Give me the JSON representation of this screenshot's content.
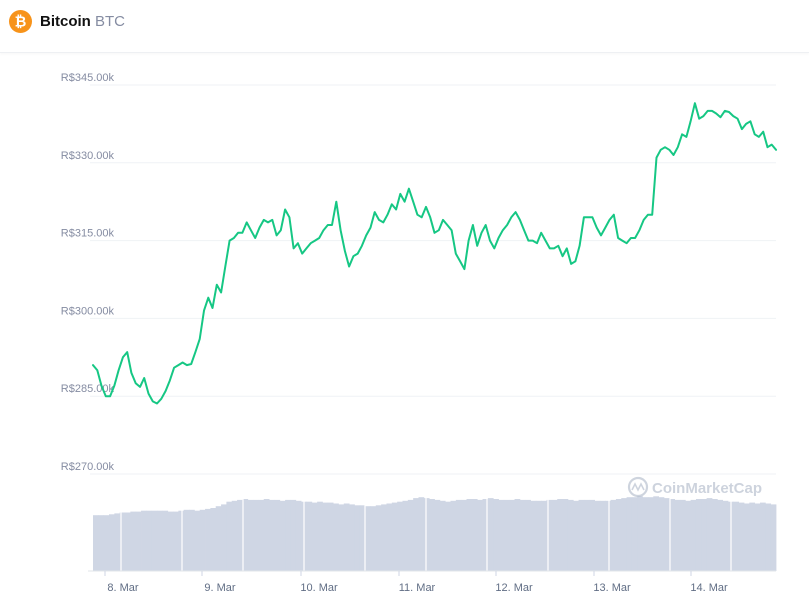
{
  "header": {
    "coin_name": "Bitcoin",
    "coin_symbol": "BTC",
    "logo_color": "#f7931a",
    "logo_icon": "bitcoin-icon"
  },
  "watermark": "CoinMarketCap",
  "colors": {
    "line": "#16c784",
    "volume": "#cfd6e4",
    "grid": "#eff2f5",
    "axis": "#858ca2"
  },
  "chart_data": {
    "type": "line",
    "series": [
      {
        "values": [
          291,
          290,
          287,
          285,
          285,
          287,
          290,
          292.5,
          293.5,
          289.5,
          287.5,
          286.8,
          288.5,
          285.5,
          284,
          283.6,
          284.5,
          286,
          288,
          290.5,
          291,
          291.5,
          291,
          291.2,
          293.5,
          296,
          301.5,
          304,
          302,
          306.5,
          305,
          310,
          315,
          315.5,
          316.5,
          316.5,
          318.5,
          317,
          315.5,
          317.5,
          319,
          318.5,
          319,
          316,
          317,
          321,
          319.5,
          313.5,
          314.5,
          312.5,
          313.5,
          314.5,
          315,
          315.5,
          317,
          318,
          318,
          322.5,
          317,
          313,
          310,
          312,
          312.5,
          314,
          316,
          317.5,
          320.5,
          319,
          318.5,
          320,
          322,
          321,
          324,
          322.5,
          325,
          322.5,
          320,
          319.5,
          321.5,
          319.5,
          316.5,
          317,
          319,
          318,
          317,
          312.5,
          311,
          309.5,
          315,
          318,
          314,
          316.5,
          318,
          315,
          313.5,
          315.5,
          317,
          318,
          319.5,
          320.5,
          319,
          317,
          315,
          315,
          314.5,
          316.5,
          315,
          313.5,
          313.5,
          314,
          312,
          313.5,
          310.5,
          311,
          314,
          319.5,
          319.5,
          319.5,
          317.5,
          316,
          317.5,
          319,
          320,
          315.5,
          315,
          314.5,
          315.5,
          315.5,
          317,
          319,
          320,
          320,
          331,
          332.5,
          333,
          332.5,
          331.5,
          333,
          335.5,
          335,
          338,
          341.5,
          338.5,
          339,
          340,
          340,
          339.5,
          338.8,
          340,
          339.8,
          339,
          338.5,
          336.5,
          337.5,
          338,
          335.5,
          335,
          336,
          333,
          333.5,
          332.5
        ]
      }
    ],
    "volume": [
      0.62,
      0.62,
      0.62,
      0.63,
      0.64,
      0.65,
      0.65,
      0.66,
      0.66,
      0.67,
      0.67,
      0.67,
      0.67,
      0.67,
      0.66,
      0.66,
      0.67,
      0.68,
      0.68,
      0.67,
      0.68,
      0.69,
      0.7,
      0.72,
      0.74,
      0.77,
      0.78,
      0.79,
      0.8,
      0.79,
      0.79,
      0.79,
      0.8,
      0.79,
      0.79,
      0.78,
      0.79,
      0.79,
      0.78,
      0.77,
      0.77,
      0.76,
      0.77,
      0.76,
      0.76,
      0.75,
      0.74,
      0.75,
      0.74,
      0.73,
      0.73,
      0.72,
      0.72,
      0.73,
      0.74,
      0.75,
      0.76,
      0.77,
      0.78,
      0.79,
      0.81,
      0.82,
      0.81,
      0.8,
      0.79,
      0.78,
      0.77,
      0.78,
      0.79,
      0.79,
      0.8,
      0.8,
      0.79,
      0.8,
      0.81,
      0.8,
      0.79,
      0.79,
      0.79,
      0.8,
      0.79,
      0.79,
      0.78,
      0.78,
      0.78,
      0.79,
      0.79,
      0.8,
      0.8,
      0.79,
      0.78,
      0.79,
      0.79,
      0.79,
      0.78,
      0.78,
      0.78,
      0.79,
      0.8,
      0.81,
      0.82,
      0.82,
      0.83,
      0.82,
      0.82,
      0.83,
      0.82,
      0.81,
      0.8,
      0.79,
      0.79,
      0.78,
      0.79,
      0.8,
      0.8,
      0.81,
      0.8,
      0.79,
      0.78,
      0.77,
      0.77,
      0.76,
      0.75,
      0.76,
      0.75,
      0.76,
      0.75,
      0.74
    ],
    "x_ticks": [
      "8. Mar",
      "9. Mar",
      "10. Mar",
      "11. Mar",
      "12. Mar",
      "13. Mar",
      "14. Mar"
    ],
    "y_ticks": [
      "R$270.00k",
      "R$285.00k",
      "R$300.00k",
      "R$315.00k",
      "R$330.00k",
      "R$345.00k"
    ],
    "y_tick_values": [
      270,
      285,
      300,
      315,
      330,
      345
    ],
    "ylim": [
      270,
      345
    ],
    "y_unit": "R$ thousands",
    "grid": true
  }
}
